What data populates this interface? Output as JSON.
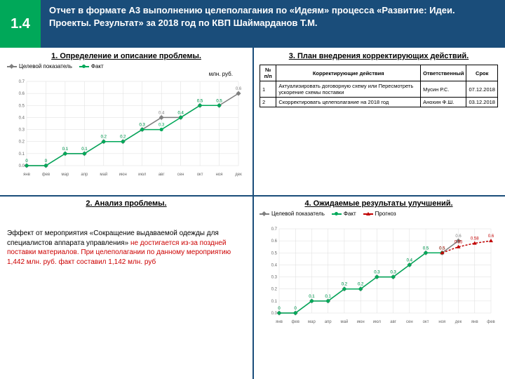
{
  "header": {
    "badge": "1.4",
    "title": "Отчет в формате А3 выполнению целеполагания по «Идеям» процесса «Развитие: Идеи. Проекты. Результат» за 2018 год по КВП Шаймарданов Т.М."
  },
  "q1": {
    "title": "1. Определение и описание проблемы.",
    "ylabel": "млн. руб.",
    "legend": [
      {
        "label": "Целевой показатель",
        "color": "#7f7f7f",
        "marker": "diamond"
      },
      {
        "label": "Факт",
        "color": "#00a859",
        "marker": "circle"
      }
    ],
    "months": [
      "янв",
      "фев",
      "мар",
      "апр",
      "май",
      "июн",
      "июл",
      "авг",
      "сен",
      "окт",
      "ноя",
      "дек"
    ],
    "series": {
      "target": [
        0,
        0,
        0.1,
        0.1,
        0.2,
        0.2,
        0.3,
        0.4,
        0.4,
        0.5,
        0.5,
        0.6
      ],
      "fact": [
        0,
        0,
        0.1,
        0.1,
        0.2,
        0.2,
        0.3,
        0.3,
        0.4,
        0.5,
        0.5,
        null
      ]
    },
    "ylim": [
      0,
      0.7
    ],
    "grid_color": "#dddddd",
    "axis_color": "#888"
  },
  "q2": {
    "title": "2. Анализ проблемы.",
    "text_black": "Эффект от мероприятия «Сокращение выдаваемой одежды для специалистов аппарата управления» ",
    "text_red": "не достигается из-за поздней поставки материалов. При целеполагании по данному мероприятию 1,442 млн. руб. факт составил 1,142 млн. руб"
  },
  "q3": {
    "title": "3. План внедрения корректирующих действий.",
    "columns": [
      "№ п/п",
      "Корректирующие действия",
      "Ответственный",
      "Срок"
    ],
    "rows": [
      [
        "1",
        "Актуализировать договорную схему или Пересмотреть ускорение схемы поставки",
        "Мусин Р.С.",
        "07.12.2018"
      ],
      [
        "2",
        "Скорректировать целеполагание на 2018 год",
        "Анохин Ф.Ш.",
        "03.12.2018"
      ]
    ]
  },
  "q4": {
    "title": "4. Ожидаемые результаты улучшений.",
    "legend": [
      {
        "label": "Целевой показатель",
        "color": "#7f7f7f",
        "marker": "diamond"
      },
      {
        "label": "Факт",
        "color": "#00a859",
        "marker": "circle"
      },
      {
        "label": "Прогноз",
        "color": "#c00000",
        "marker": "triangle"
      }
    ],
    "months": [
      "янв",
      "фев",
      "мар",
      "апр",
      "май",
      "июн",
      "июл",
      "авг",
      "сен",
      "окт",
      "ноя",
      "дек",
      "янв",
      "фев"
    ],
    "series": {
      "target": [
        0,
        0,
        0.1,
        0.1,
        0.2,
        0.2,
        0.3,
        0.3,
        0.4,
        0.5,
        0.5,
        0.6,
        null,
        null
      ],
      "fact": [
        0,
        0,
        0.1,
        0.1,
        0.2,
        0.2,
        0.3,
        0.3,
        0.4,
        0.5,
        0.5,
        null,
        null,
        null
      ],
      "forecast": [
        null,
        null,
        null,
        null,
        null,
        null,
        null,
        null,
        null,
        null,
        0.5,
        0.55,
        0.58,
        0.6
      ]
    },
    "ylim": [
      0,
      0.7
    ]
  },
  "colors": {
    "header_bg": "#1a4d7a",
    "badge_bg": "#00a859"
  }
}
